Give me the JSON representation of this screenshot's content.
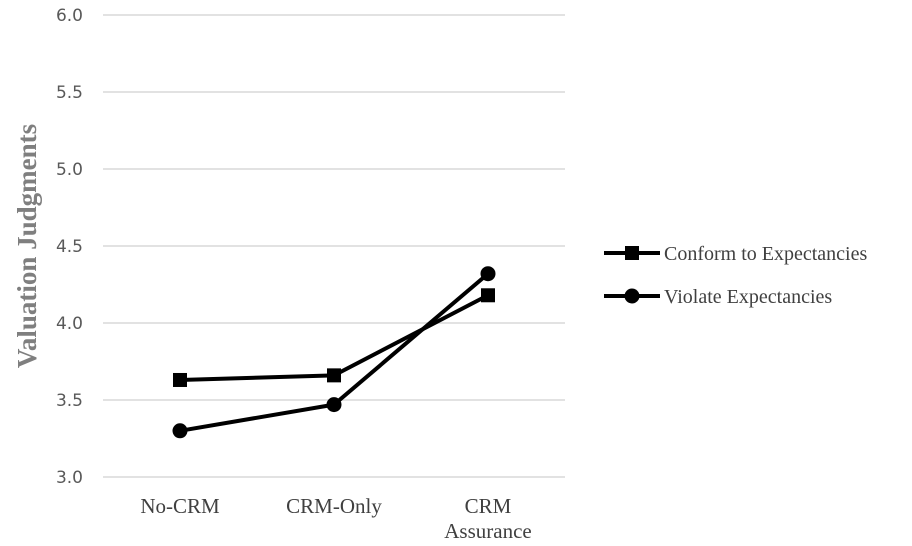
{
  "chart_data": {
    "type": "line",
    "title": "",
    "xlabel": "",
    "ylabel": "Valuation Judgments",
    "categories": [
      [
        "No-CRM"
      ],
      [
        "CRM-Only"
      ],
      [
        "CRM",
        "Assurance"
      ]
    ],
    "ylim": [
      3.0,
      6.0
    ],
    "yticks": [
      "3.0",
      "3.5",
      "4.0",
      "4.5",
      "5.0",
      "5.5",
      "6.0"
    ],
    "grid": true,
    "legend_position": "right",
    "series": [
      {
        "name": "Conform to Expectancies",
        "marker": "square",
        "color": "#000000",
        "values": [
          3.63,
          3.66,
          4.18
        ]
      },
      {
        "name": "Violate Expectancies",
        "marker": "circle",
        "color": "#000000",
        "values": [
          3.3,
          3.47,
          4.32
        ]
      }
    ]
  }
}
